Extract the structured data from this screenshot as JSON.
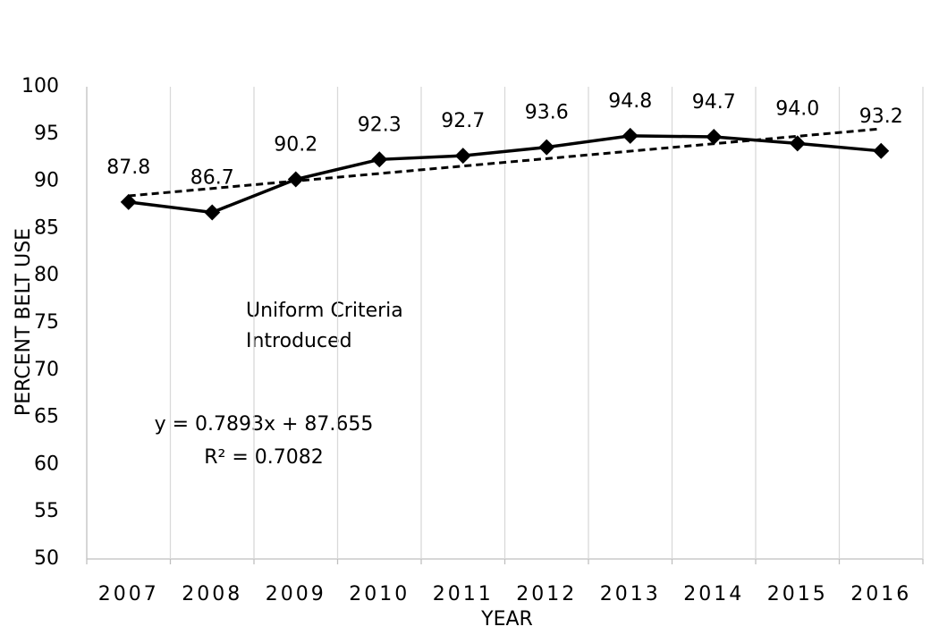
{
  "chart_data": {
    "type": "line",
    "x_label": "YEAR",
    "y_label": "PERCENT BELT USE",
    "categories": [
      "2007",
      "2008",
      "2009",
      "2010",
      "2011",
      "2012",
      "2013",
      "2014",
      "2015",
      "2016"
    ],
    "series": [
      {
        "name": "Percent belt use",
        "color": "#000000",
        "values": [
          87.8,
          86.7,
          90.2,
          92.3,
          92.7,
          93.6,
          94.8,
          94.7,
          94.0,
          93.2
        ],
        "value_labels": [
          "87.8",
          "86.7",
          "90.2",
          "92.3",
          "92.7",
          "93.6",
          "94.8",
          "94.7",
          "94.0",
          "93.2"
        ]
      }
    ],
    "trendline": {
      "slope": 0.7893,
      "intercept": 87.655,
      "equation": "y = 0.7893x + 87.655",
      "r_squared": "R² = 0.7082"
    },
    "annotation": [
      "Uniform Criteria",
      "Introduced"
    ],
    "ylim": [
      50,
      100
    ],
    "yticks": [
      50,
      55,
      60,
      65,
      70,
      75,
      80,
      85,
      90,
      95,
      100
    ],
    "grid": true
  }
}
